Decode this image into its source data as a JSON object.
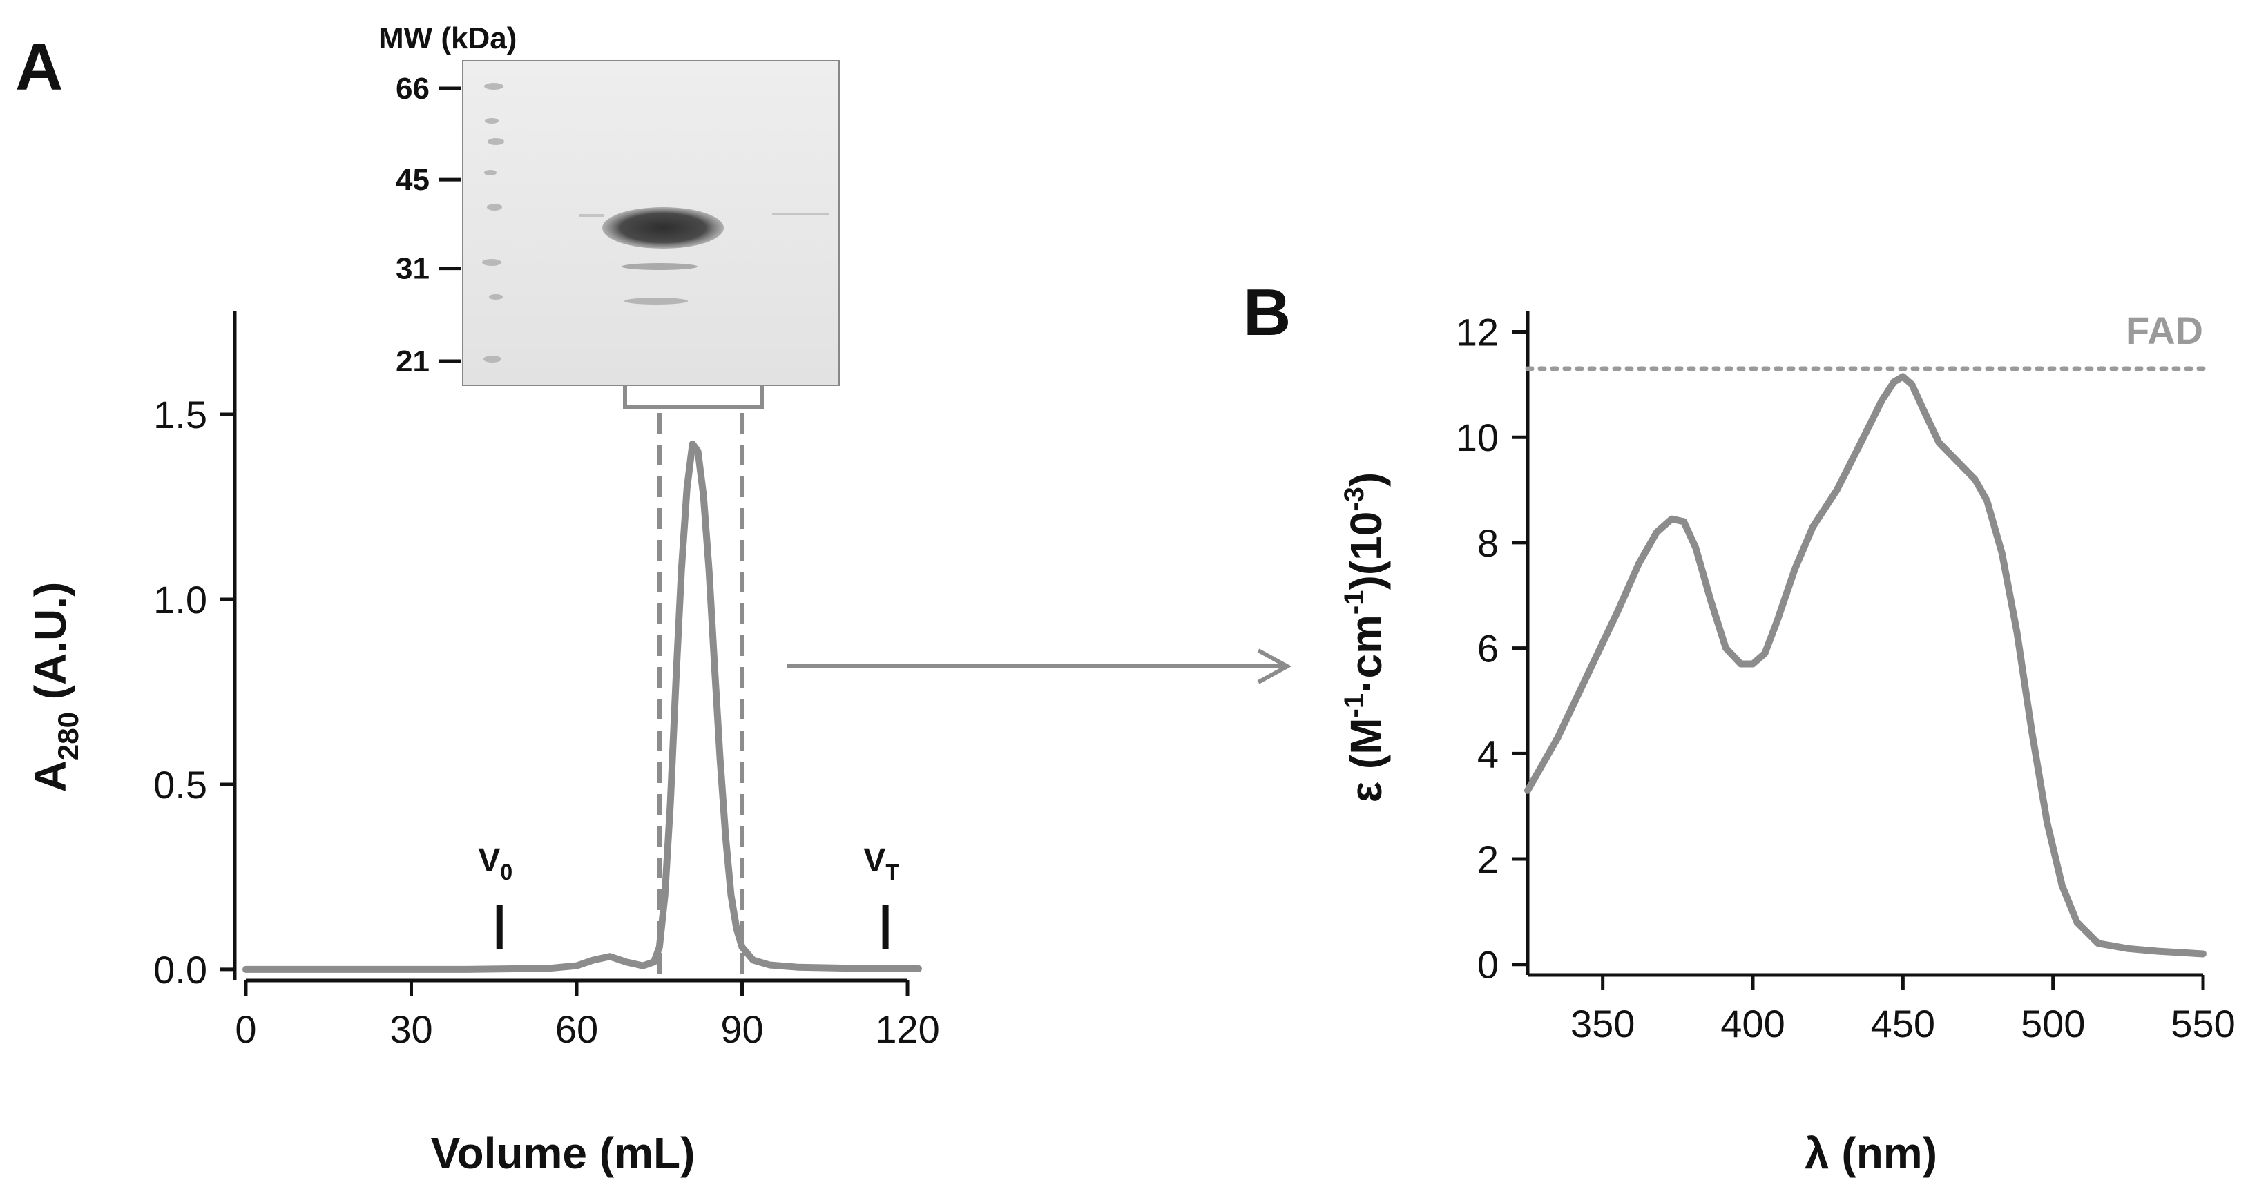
{
  "colors": {
    "trace": "#8c8c8c",
    "axis": "#111111",
    "reference": "#9a9a9a"
  },
  "panels": {
    "a_label": "A",
    "b_label": "B"
  },
  "gel": {
    "header": "MW (kDa)",
    "markers": [
      {
        "label": "66",
        "kda": 66
      },
      {
        "label": "45",
        "kda": 45
      },
      {
        "label": "31",
        "kda": 31
      },
      {
        "label": "21",
        "kda": 21
      }
    ]
  },
  "chart_data": [
    {
      "id": "chromatogram",
      "type": "line",
      "title": "",
      "xlabel": "Volume (mL)",
      "ylabel_main": "A",
      "ylabel_sub": "280",
      "ylabel_rest": " (A.U.)",
      "xlim": [
        -2,
        122
      ],
      "ylim": [
        -0.03,
        1.78
      ],
      "xticks": [
        0,
        30,
        60,
        90,
        120
      ],
      "xtick_labels": [
        "0",
        "30",
        "60",
        "90",
        "120"
      ],
      "yticks": [
        0.0,
        0.5,
        1.0,
        1.5
      ],
      "ytick_labels": [
        "0.0",
        "0.5",
        "1.0",
        "1.5"
      ],
      "series": [
        {
          "name": "A280",
          "x": [
            0,
            20,
            40,
            55,
            60,
            63,
            66,
            69,
            72,
            74,
            75,
            76,
            77,
            78,
            79,
            80,
            81,
            82,
            83,
            84,
            85,
            86,
            87,
            88,
            89,
            90,
            92,
            95,
            100,
            110,
            122
          ],
          "y": [
            0.0,
            0.0,
            0.0,
            0.003,
            0.01,
            0.025,
            0.035,
            0.02,
            0.01,
            0.02,
            0.06,
            0.2,
            0.45,
            0.78,
            1.08,
            1.3,
            1.42,
            1.4,
            1.28,
            1.08,
            0.82,
            0.57,
            0.36,
            0.2,
            0.11,
            0.06,
            0.025,
            0.012,
            0.006,
            0.003,
            0.002
          ]
        }
      ],
      "annotations": [
        {
          "label": "V",
          "sub": "0",
          "x": 46
        },
        {
          "label": "V",
          "sub": "T",
          "x": 116
        }
      ],
      "fraction_range": [
        75,
        90
      ]
    },
    {
      "id": "spectrum",
      "type": "line",
      "title": "",
      "xlabel": "λ (nm)",
      "ylabel_parts": [
        "ε (M",
        "-1",
        "·cm",
        "-1",
        ")(10",
        "-3",
        ")"
      ],
      "xlim": [
        325,
        550
      ],
      "ylim": [
        -0.2,
        12.4
      ],
      "xticks": [
        350,
        400,
        450,
        500,
        550
      ],
      "xtick_labels": [
        "350",
        "400",
        "450",
        "500",
        "550"
      ],
      "yticks": [
        0,
        2,
        4,
        6,
        8,
        10,
        12
      ],
      "ytick_labels": [
        "0",
        "2",
        "4",
        "6",
        "8",
        "10",
        "12"
      ],
      "series": [
        {
          "name": "epsilon",
          "x": [
            325,
            335,
            345,
            355,
            362,
            368,
            373,
            377,
            381,
            386,
            391,
            396,
            400,
            404,
            408,
            414,
            420,
            428,
            436,
            443,
            447,
            450,
            453,
            457,
            462,
            468,
            474,
            478,
            483,
            488,
            493,
            498,
            503,
            508,
            515,
            525,
            535,
            550
          ],
          "y": [
            3.3,
            4.3,
            5.5,
            6.7,
            7.6,
            8.2,
            8.45,
            8.4,
            7.9,
            6.9,
            6.0,
            5.7,
            5.7,
            5.9,
            6.5,
            7.5,
            8.3,
            9.0,
            9.9,
            10.7,
            11.05,
            11.15,
            11.0,
            10.5,
            9.9,
            9.55,
            9.2,
            8.8,
            7.8,
            6.3,
            4.4,
            2.7,
            1.5,
            0.8,
            0.4,
            0.3,
            0.25,
            0.2
          ]
        }
      ],
      "reference_line": {
        "label": "FAD",
        "y": 11.3
      }
    }
  ]
}
